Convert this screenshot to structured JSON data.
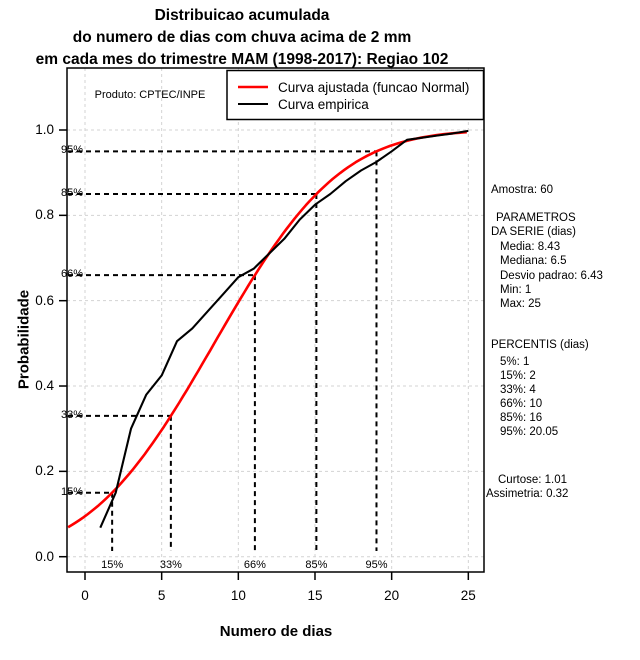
{
  "title": {
    "line1": "Distribuicao acumulada",
    "line2": "do numero de dias com chuva acima de 2 mm",
    "line3": "em cada mes do trimestre MAM (1998-2017): Regiao 102"
  },
  "watermark": "Produto: CPTEC/INPE",
  "legend": {
    "items": [
      {
        "label": "Curva ajustada (funcao Normal)",
        "color": "#ff0000"
      },
      {
        "label": "Curva empirica",
        "color": "#000000"
      }
    ]
  },
  "axes": {
    "x_label": "Numero de dias",
    "y_label": "Probabilidade",
    "x_ticks": [
      "0",
      "5",
      "10",
      "15",
      "20",
      "25"
    ],
    "y_ticks": [
      "0.0",
      "0.2",
      "0.4",
      "0.6",
      "0.8",
      "1.0"
    ]
  },
  "side_panel": {
    "amostra": "Amostra: 60",
    "parametros_line1": "PARAMETROS",
    "parametros_line2": "DA SERIE (dias)",
    "media": "Media: 8.43",
    "mediana": "Mediana: 6.5",
    "desvio": "Desvio padrao: 6.43",
    "min": "Min: 1",
    "max": "Max: 25",
    "percentis_title": "PERCENTIS (dias)",
    "p5": "5%: 1",
    "p15": "15%: 2",
    "p33": "33%: 4",
    "p66": "66%: 10",
    "p85": "85%: 16",
    "p95": "95%: 20.05",
    "curtose": "Curtose: 1.01",
    "assimetria": "Assimetria: 0.32"
  },
  "chart_data": {
    "type": "line",
    "title": "Distribuicao acumulada do numero de dias com chuva acima de 2 mm em cada mes do trimestre MAM (1998-2017): Regiao 102",
    "xlabel": "Numero de dias",
    "ylabel": "Probabilidade",
    "xlim": [
      0,
      25
    ],
    "ylim": [
      0,
      1
    ],
    "x_tick_values": [
      0,
      5,
      10,
      15,
      20,
      25
    ],
    "y_tick_values": [
      0.0,
      0.2,
      0.4,
      0.6,
      0.8,
      1.0
    ],
    "grid": true,
    "grid_color": "#d3d3d3",
    "legend_position": "top",
    "series": [
      {
        "name": "Curva ajustada (funcao Normal)",
        "color": "#ff0000",
        "model": "normal_cdf",
        "mean": 8.43,
        "sd": 6.43,
        "x_range": [
          -1.1,
          25.1
        ]
      },
      {
        "name": "Curva empirica",
        "color": "#000000",
        "points": [
          [
            1,
            0.068
          ],
          [
            2,
            0.15
          ],
          [
            3,
            0.3
          ],
          [
            4,
            0.38
          ],
          [
            5,
            0.425
          ],
          [
            6,
            0.505
          ],
          [
            7,
            0.535
          ],
          [
            8,
            0.575
          ],
          [
            9,
            0.615
          ],
          [
            10,
            0.655
          ],
          [
            11,
            0.675
          ],
          [
            12,
            0.71
          ],
          [
            13,
            0.745
          ],
          [
            14,
            0.79
          ],
          [
            15,
            0.825
          ],
          [
            16,
            0.85
          ],
          [
            17,
            0.88
          ],
          [
            18,
            0.905
          ],
          [
            19,
            0.925
          ],
          [
            20,
            0.95
          ],
          [
            21,
            0.977
          ],
          [
            22,
            0.982
          ],
          [
            23,
            0.987
          ],
          [
            24,
            0.992
          ],
          [
            25,
            0.998
          ]
        ]
      }
    ],
    "percentile_guides": [
      {
        "label": "15%",
        "p": 0.15,
        "day": 1.77
      },
      {
        "label": "33%",
        "p": 0.33,
        "day": 5.6
      },
      {
        "label": "66%",
        "p": 0.66,
        "day": 11.08
      },
      {
        "label": "85%",
        "p": 0.85,
        "day": 15.09
      },
      {
        "label": "95%",
        "p": 0.95,
        "day": 19.01
      }
    ],
    "statistics": {
      "sample_size": 60,
      "mean": 8.43,
      "median": 6.5,
      "std_dev": 6.43,
      "min": 1,
      "max": 25,
      "kurtosis": 1.01,
      "skewness": 0.32,
      "percentiles": {
        "5%": 1,
        "15%": 2,
        "33%": 4,
        "66%": 10,
        "85%": 16,
        "95%": 20.05
      }
    }
  }
}
